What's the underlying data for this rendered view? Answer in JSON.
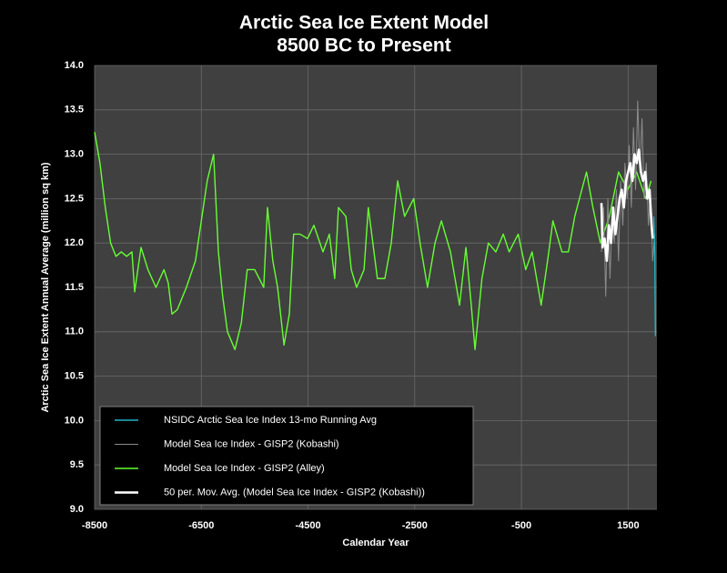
{
  "chart_data": {
    "type": "line",
    "title": "Arctic Sea Ice Extent Model",
    "subtitle": "8500 BC to Present",
    "x_label": "Calendar Year",
    "y_label": "Arctic Sea Ice Extent Annual Average (million sq km)",
    "xlim": [
      -8500,
      2040
    ],
    "ylim": [
      9,
      14
    ],
    "xticks": [
      -8500,
      -6500,
      -4500,
      -2500,
      -500,
      1500
    ],
    "yticks": [
      {
        "value": 9,
        "label": "9.0"
      },
      9.5,
      {
        "value": 10,
        "label": "10.0"
      },
      10.5,
      {
        "value": 11,
        "label": "11.0"
      },
      11.5,
      {
        "value": 12,
        "label": "12.0"
      },
      12.5,
      {
        "value": 13,
        "label": "13.0"
      },
      13.5,
      {
        "value": 14,
        "label": "14.0"
      }
    ],
    "grid": true,
    "legend": "lower left",
    "series": [
      {
        "name": "Model Sea Ice Index - GISP2 (Alley)",
        "color": "#66ff33",
        "x": [
          -8500,
          -8400,
          -8300,
          -8200,
          -8100,
          -8000,
          -7900,
          -7800,
          -7750,
          -7630,
          -7500,
          -7350,
          -7200,
          -7120,
          -7050,
          -6950,
          -6780,
          -6610,
          -6390,
          -6270,
          -6180,
          -6100,
          -6010,
          -5870,
          -5750,
          -5640,
          -5500,
          -5330,
          -5260,
          -5160,
          -5070,
          -4950,
          -4850,
          -4770,
          -4650,
          -4510,
          -4390,
          -4220,
          -4100,
          -4000,
          -3930,
          -3790,
          -3690,
          -3590,
          -3450,
          -3370,
          -3200,
          -3060,
          -2940,
          -2820,
          -2690,
          -2520,
          -2400,
          -2260,
          -2120,
          -2000,
          -1830,
          -1660,
          -1540,
          -1440,
          -1370,
          -1240,
          -1120,
          -980,
          -840,
          -730,
          -560,
          -420,
          -300,
          -130,
          -10,
          90,
          260,
          380,
          500,
          720,
          840,
          980,
          1150,
          1320,
          1490,
          1660,
          1830,
          1930
        ],
        "values": [
          13.25,
          12.9,
          12.4,
          12.0,
          11.85,
          11.9,
          11.85,
          11.9,
          11.45,
          11.95,
          11.7,
          11.5,
          11.7,
          11.55,
          11.2,
          11.25,
          11.5,
          11.8,
          12.7,
          13.0,
          11.9,
          11.4,
          11.0,
          10.8,
          11.1,
          11.7,
          11.7,
          11.5,
          12.4,
          11.8,
          11.5,
          10.85,
          11.2,
          12.1,
          12.1,
          12.05,
          12.2,
          11.9,
          12.1,
          11.6,
          12.4,
          12.3,
          11.7,
          11.5,
          11.7,
          12.4,
          11.6,
          11.6,
          12.0,
          12.7,
          12.3,
          12.5,
          12.0,
          11.5,
          12.0,
          12.25,
          11.9,
          11.3,
          11.95,
          11.3,
          10.8,
          11.6,
          12.0,
          11.9,
          12.1,
          11.9,
          12.1,
          11.7,
          11.9,
          11.3,
          11.8,
          12.25,
          11.9,
          11.9,
          12.3,
          12.8,
          12.4,
          12.0,
          12.3,
          12.8,
          12.6,
          12.8,
          12.5,
          12.7
        ]
      },
      {
        "name": "Model Sea Ice Index - GISP2 (Kobashi)",
        "color": "#8c8c8c",
        "x": [
          1000,
          1040,
          1080,
          1120,
          1160,
          1200,
          1240,
          1280,
          1320,
          1360,
          1400,
          1440,
          1480,
          1520,
          1560,
          1600,
          1640,
          1680,
          1720,
          1760,
          1800,
          1840,
          1880,
          1920,
          1960,
          2000
        ],
        "values": [
          11.9,
          12.4,
          11.4,
          12.5,
          11.6,
          12.3,
          12.0,
          12.6,
          11.8,
          12.7,
          12.2,
          12.9,
          12.5,
          13.1,
          12.4,
          13.3,
          12.6,
          13.6,
          12.8,
          13.4,
          12.5,
          12.9,
          12.2,
          12.6,
          11.8,
          12.1
        ]
      },
      {
        "name": "50 per. Mov. Avg. (Model Sea Ice Index - GISP2 (Kobashi))",
        "color": "#ffffff",
        "x": [
          1000,
          1020,
          1060,
          1100,
          1140,
          1180,
          1220,
          1260,
          1300,
          1340,
          1380,
          1420,
          1460,
          1500,
          1540,
          1580,
          1620,
          1660,
          1700,
          1740,
          1780,
          1820,
          1860,
          1900,
          1940,
          1960
        ],
        "values": [
          12.45,
          11.95,
          12.05,
          11.8,
          12.2,
          12.0,
          12.4,
          12.1,
          12.3,
          12.5,
          12.6,
          12.4,
          12.7,
          12.8,
          12.9,
          12.7,
          13.0,
          12.9,
          13.05,
          12.8,
          12.7,
          12.8,
          12.5,
          12.6,
          12.2,
          12.05
        ]
      },
      {
        "name": "NSIDC Arctic Sea Ice Index 13-mo Running Avg",
        "color": "#1fb6c9",
        "x": [
          1979,
          1990,
          2000,
          2007,
          2012
        ],
        "values": [
          12.3,
          12.1,
          11.9,
          11.3,
          10.95
        ]
      }
    ]
  }
}
